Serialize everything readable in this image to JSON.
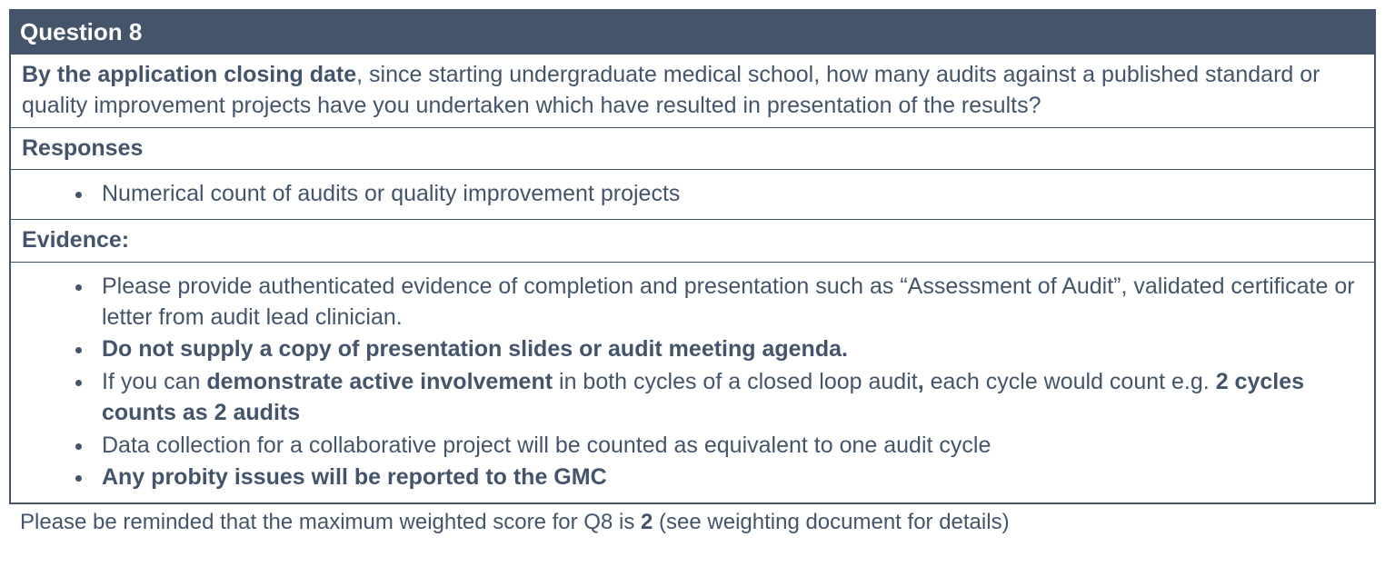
{
  "colors": {
    "header_bg": "#44546a",
    "header_text": "#ffffff",
    "border": "#44546a",
    "body_text": "#44546a",
    "page_bg": "#ffffff"
  },
  "typography": {
    "header_fontsize_pt": 20,
    "body_fontsize_pt": 19,
    "footnote_fontsize_pt": 18,
    "font_family": "Arial"
  },
  "question": {
    "title": "Question 8",
    "prompt_bold": "By the application closing date",
    "prompt_rest": ", since starting undergraduate medical school, how many audits against a published standard or quality improvement projects have you undertaken which have resulted in presentation of the results?"
  },
  "responses": {
    "label": "Responses",
    "items": [
      {
        "text": "Numerical count of audits or quality improvement projects"
      }
    ]
  },
  "evidence": {
    "label": "Evidence:",
    "items": [
      {
        "parts": [
          {
            "text": "Please provide authenticated evidence of completion and presentation such as “Assessment of Audit”, validated certificate or letter from audit lead clinician.",
            "bold": false
          }
        ]
      },
      {
        "parts": [
          {
            "text": "Do not supply a copy of presentation slides or audit meeting agenda.",
            "bold": true
          }
        ]
      },
      {
        "parts": [
          {
            "text": "If you can ",
            "bold": false
          },
          {
            "text": "demonstrate active involvement",
            "bold": true
          },
          {
            "text": " in both cycles of a closed loop audit",
            "bold": false
          },
          {
            "text": ",",
            "bold": true
          },
          {
            "text": " each cycle would count e.g. ",
            "bold": false
          },
          {
            "text": "2 cycles counts as 2 audits",
            "bold": true
          }
        ]
      },
      {
        "parts": [
          {
            "text": "Data collection for a collaborative project will be counted as equivalent to one audit cycle",
            "bold": false
          }
        ]
      },
      {
        "parts": [
          {
            "text": "Any probity issues will be reported to the GMC",
            "bold": true
          }
        ]
      }
    ]
  },
  "footnote": {
    "pre": "Please be reminded that the maximum weighted score for Q8 is ",
    "bold": "2",
    "post": " (see weighting document for details)"
  }
}
